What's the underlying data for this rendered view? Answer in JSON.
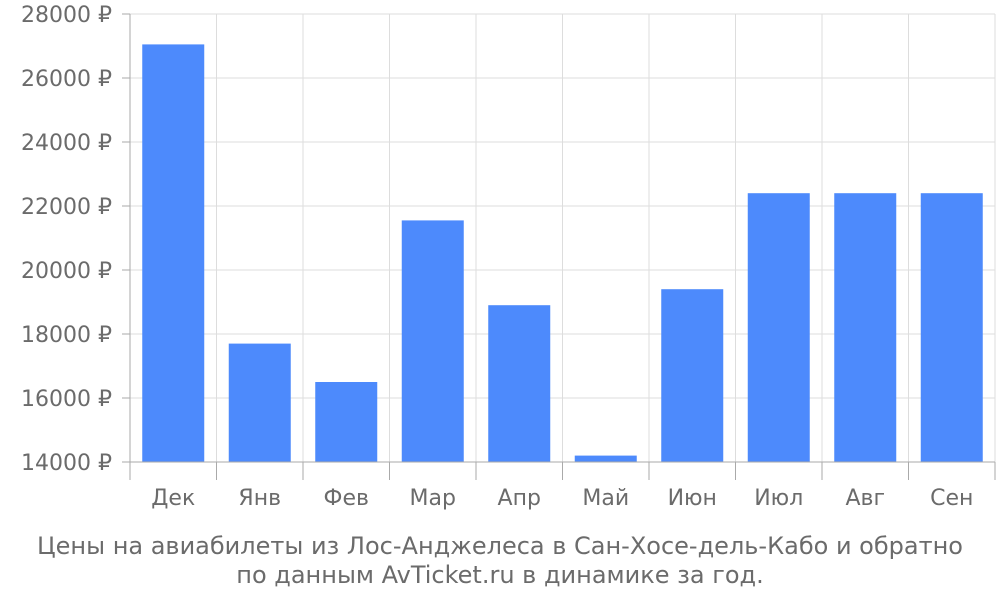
{
  "chart_data": {
    "type": "bar",
    "categories": [
      "Дек",
      "Янв",
      "Фев",
      "Мар",
      "Апр",
      "Май",
      "Июн",
      "Июл",
      "Авг",
      "Сен"
    ],
    "values": [
      27050,
      17700,
      16500,
      21550,
      18900,
      14200,
      19400,
      22400,
      22400,
      22400
    ],
    "ylim": [
      14000,
      28000
    ],
    "yticks": [
      14000,
      16000,
      18000,
      20000,
      22000,
      24000,
      26000,
      28000
    ],
    "ytick_labels": [
      "14000 ₽",
      "16000 ₽",
      "18000 ₽",
      "20000 ₽",
      "22000 ₽",
      "24000 ₽",
      "26000 ₽",
      "28000 ₽"
    ],
    "grid": true,
    "bar_color": "#4d8afc",
    "grid_color": "#dddddd",
    "axis_color": "#aaaaaa",
    "text_color": "#6b6b6b"
  },
  "caption": {
    "line1": "Цены на авиабилеты из Лос-Анджелеса в Сан-Хосе-дель-Кабо и обратно",
    "line2": "по данным AvTicket.ru в динамике за год."
  }
}
